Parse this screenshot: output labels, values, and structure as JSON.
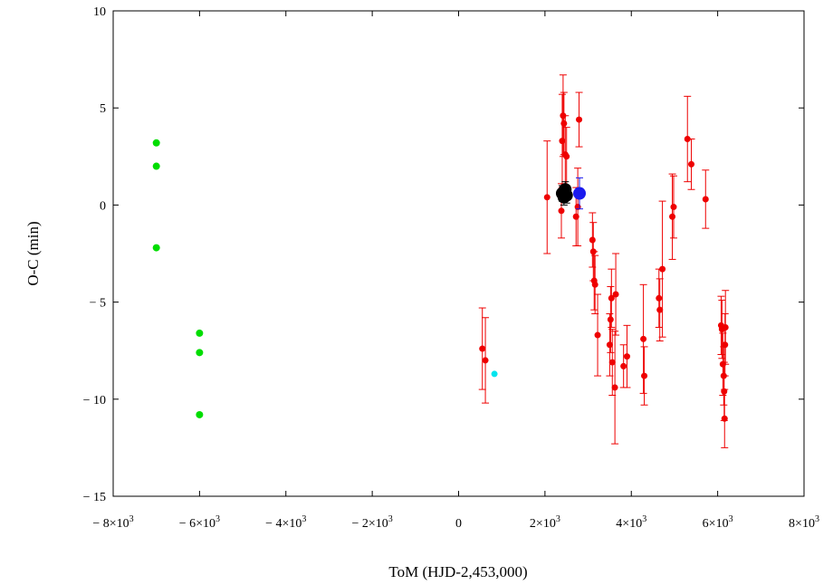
{
  "chart_data": {
    "type": "scatter",
    "title": "",
    "xlabel": "ToM (HJD-2,453,000)",
    "ylabel": "O-C (min)",
    "xlim": [
      -8000,
      8000
    ],
    "ylim": [
      -15,
      10
    ],
    "grid": false,
    "legend": "none",
    "x_ticks": [
      {
        "value": -8000,
        "mant": "− 8×10",
        "exp": "3"
      },
      {
        "value": -6000,
        "mant": "− 6×10",
        "exp": "3"
      },
      {
        "value": -4000,
        "mant": "− 4×10",
        "exp": "3"
      },
      {
        "value": -2000,
        "mant": "− 2×10",
        "exp": "3"
      },
      {
        "value": 0,
        "mant": "0",
        "exp": ""
      },
      {
        "value": 2000,
        "mant": "2×10",
        "exp": "3"
      },
      {
        "value": 4000,
        "mant": "4×10",
        "exp": "3"
      },
      {
        "value": 6000,
        "mant": "6×10",
        "exp": "3"
      },
      {
        "value": 8000,
        "mant": "8×10",
        "exp": "3"
      }
    ],
    "y_ticks": [
      {
        "value": 10,
        "label": "10"
      },
      {
        "value": 5,
        "label": "5"
      },
      {
        "value": 0,
        "label": "0"
      },
      {
        "value": -5,
        "label": "− 5"
      },
      {
        "value": -10,
        "label": "− 10"
      },
      {
        "value": -15,
        "label": "− 15"
      }
    ],
    "series": [
      {
        "color": "#00dd00",
        "marker_radius": 4,
        "points": [
          {
            "x": -7000,
            "y": 3.2
          },
          {
            "x": -7000,
            "y": 2.0
          },
          {
            "x": -7000,
            "y": -2.2
          },
          {
            "x": -6000,
            "y": -6.6
          },
          {
            "x": -6000,
            "y": -7.6
          },
          {
            "x": -6000,
            "y": -10.8
          }
        ]
      },
      {
        "color": "#00e5ee",
        "marker_radius": 3.5,
        "points": [
          {
            "x": 830,
            "y": -8.7
          }
        ]
      },
      {
        "color": "#ee0000",
        "marker_radius": 3.5,
        "points": [
          {
            "x": 550,
            "y": -7.4,
            "err": 2.1
          },
          {
            "x": 620,
            "y": -8.0,
            "err": 2.2
          },
          {
            "x": 2050,
            "y": 0.4,
            "err": 2.9
          },
          {
            "x": 2380,
            "y": -0.3,
            "err": 1.4
          },
          {
            "x": 2400,
            "y": 3.3,
            "err": 2.4
          },
          {
            "x": 2420,
            "y": 4.6,
            "err": 2.1
          },
          {
            "x": 2440,
            "y": 4.2,
            "err": 1.6
          },
          {
            "x": 2470,
            "y": 2.6,
            "err": 2.0
          },
          {
            "x": 2500,
            "y": 2.5,
            "err": 1.5
          },
          {
            "x": 2720,
            "y": -0.6,
            "err": 1.5
          },
          {
            "x": 2760,
            "y": -0.1,
            "err": 2.0
          },
          {
            "x": 2790,
            "y": 4.4,
            "err": 1.4
          },
          {
            "x": 3100,
            "y": -1.8,
            "err": 1.4
          },
          {
            "x": 3120,
            "y": -2.4,
            "err": 1.5
          },
          {
            "x": 3140,
            "y": -3.9,
            "err": 1.5
          },
          {
            "x": 3160,
            "y": -4.1,
            "err": 1.5
          },
          {
            "x": 3220,
            "y": -6.7,
            "err": 2.1
          },
          {
            "x": 3500,
            "y": -7.2,
            "err": 1.6
          },
          {
            "x": 3520,
            "y": -5.9,
            "err": 1.7
          },
          {
            "x": 3540,
            "y": -4.8,
            "err": 1.5
          },
          {
            "x": 3560,
            "y": -8.1,
            "err": 1.7
          },
          {
            "x": 3620,
            "y": -9.4,
            "err": 2.9
          },
          {
            "x": 3640,
            "y": -4.6,
            "err": 2.1
          },
          {
            "x": 3820,
            "y": -8.3,
            "err": 1.1
          },
          {
            "x": 3900,
            "y": -7.8,
            "err": 1.6
          },
          {
            "x": 4280,
            "y": -6.9,
            "err": 2.8
          },
          {
            "x": 4300,
            "y": -8.8,
            "err": 1.5
          },
          {
            "x": 4640,
            "y": -4.8,
            "err": 1.5
          },
          {
            "x": 4660,
            "y": -5.4,
            "err": 1.6
          },
          {
            "x": 4720,
            "y": -3.3,
            "err": 3.5
          },
          {
            "x": 4950,
            "y": -0.6,
            "err": 2.2
          },
          {
            "x": 4980,
            "y": -0.1,
            "err": 1.6
          },
          {
            "x": 5300,
            "y": 3.4,
            "err": 2.2
          },
          {
            "x": 5390,
            "y": 2.1,
            "err": 1.3
          },
          {
            "x": 5720,
            "y": 0.3,
            "err": 1.5
          },
          {
            "x": 6080,
            "y": -6.2,
            "err": 1.5
          },
          {
            "x": 6100,
            "y": -6.4,
            "err": 1.5
          },
          {
            "x": 6120,
            "y": -8.2,
            "err": 1.6
          },
          {
            "x": 6140,
            "y": -8.8,
            "err": 1.5
          },
          {
            "x": 6150,
            "y": -9.6,
            "err": 1.5
          },
          {
            "x": 6160,
            "y": -11.0,
            "err": 1.5
          },
          {
            "x": 6170,
            "y": -7.2,
            "err": 1.6
          },
          {
            "x": 6180,
            "y": -6.3,
            "err": 1.9
          }
        ]
      },
      {
        "color": "#000000",
        "marker_radius": 7,
        "points": [
          {
            "x": 2400,
            "y": 0.6,
            "err": 0.4
          },
          {
            "x": 2440,
            "y": 0.4,
            "err": 0.4
          },
          {
            "x": 2470,
            "y": 0.8,
            "err": 0.4
          },
          {
            "x": 2500,
            "y": 0.5,
            "err": 0.4
          }
        ]
      },
      {
        "color": "#1a1aee",
        "marker_radius": 7,
        "points": [
          {
            "x": 2800,
            "y": 0.6,
            "err": 0.8
          }
        ]
      }
    ]
  }
}
